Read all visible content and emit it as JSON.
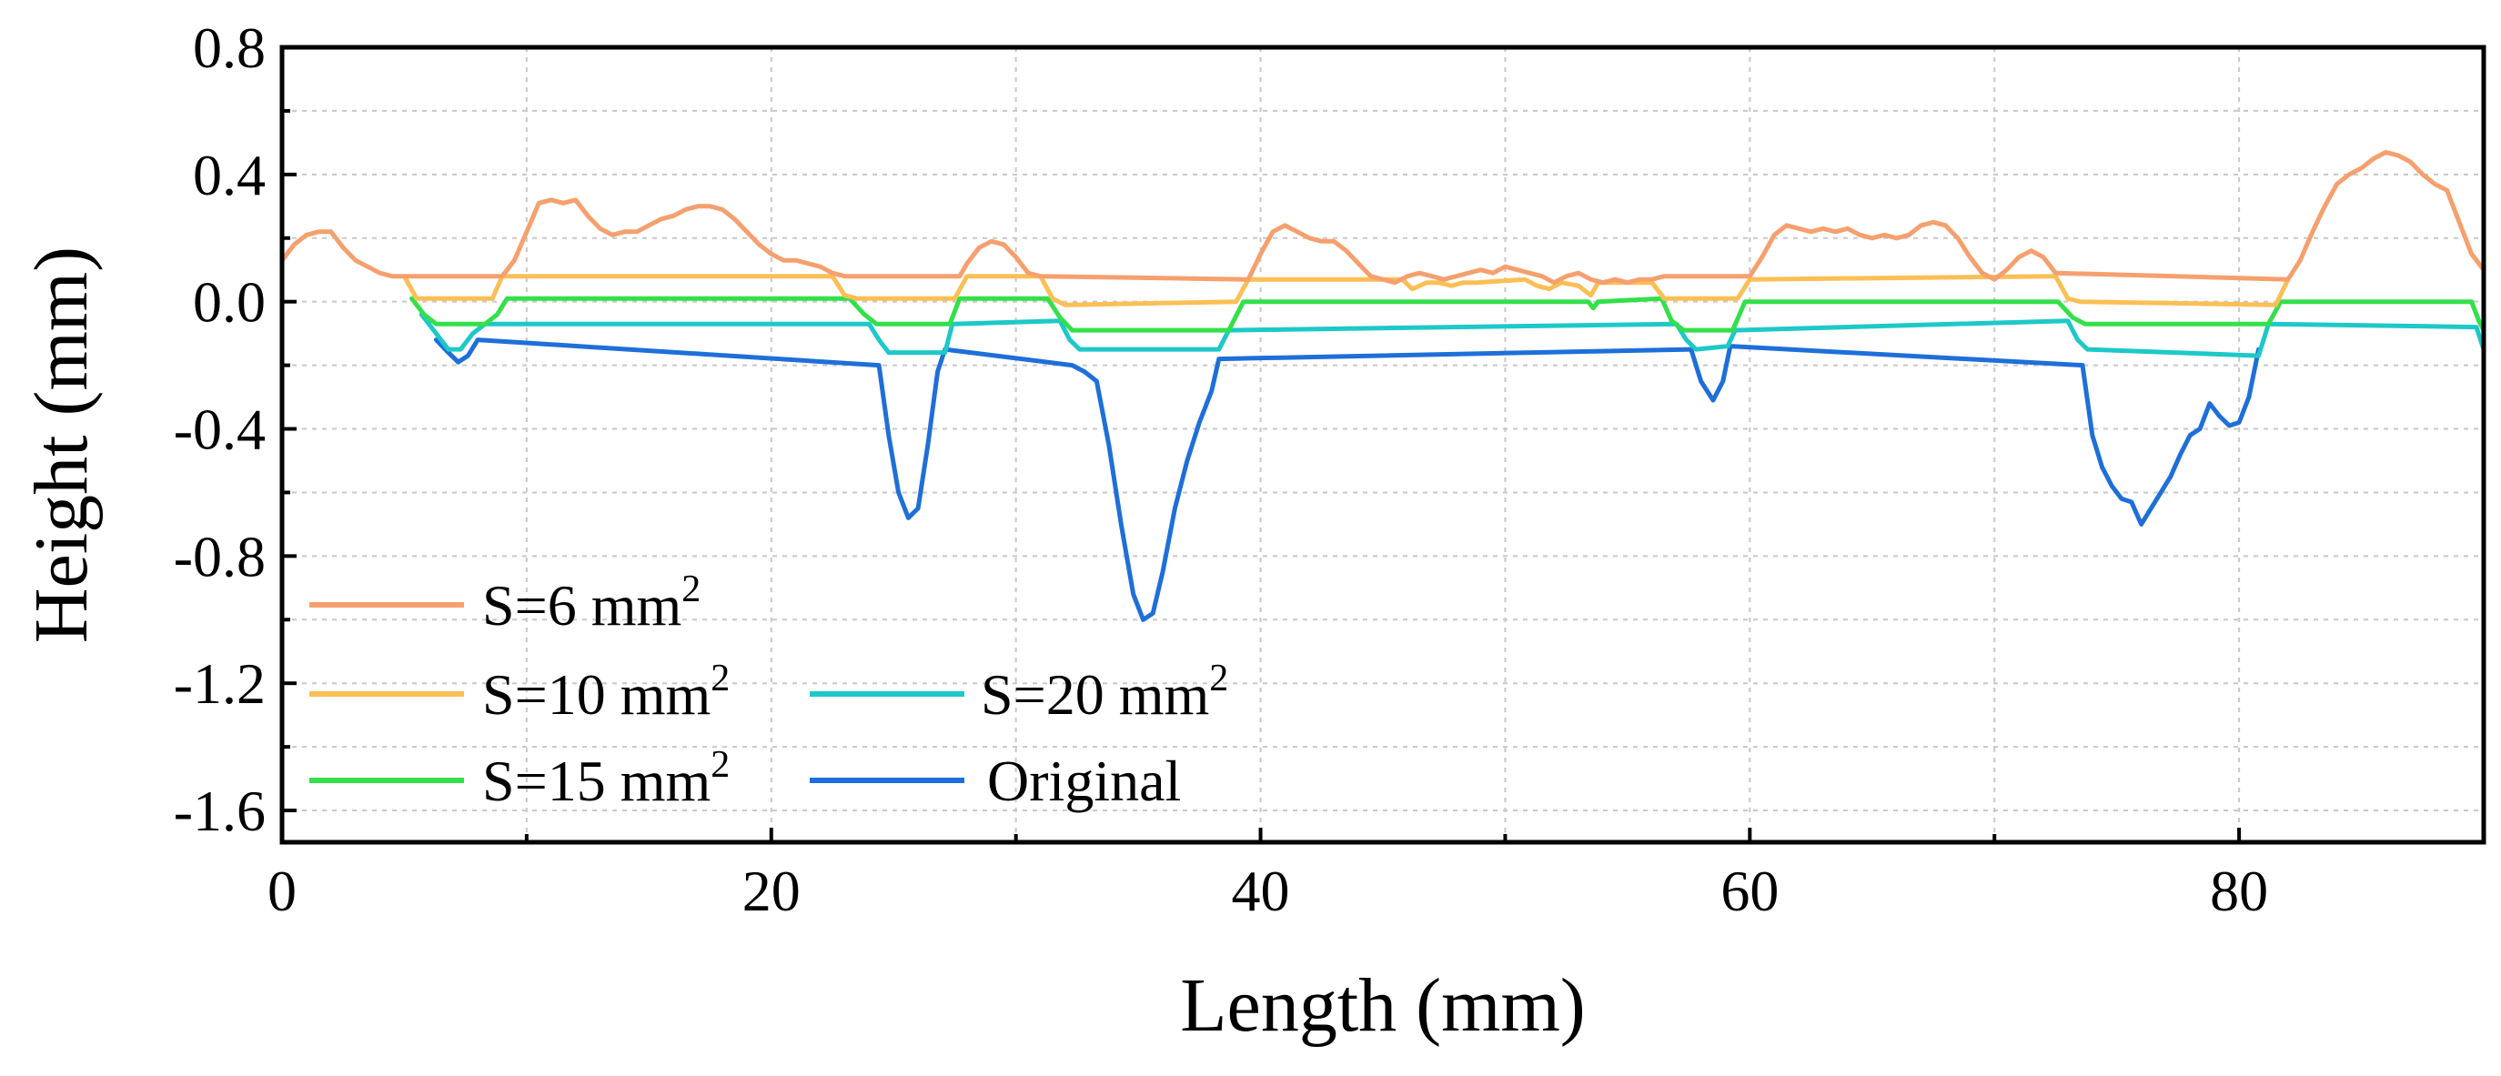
{
  "chart_data": {
    "type": "line",
    "title": "",
    "xlabel": "Length (mm)",
    "ylabel": "Height (mm)",
    "xlim": [
      0,
      90
    ],
    "ylim": [
      -1.7,
      0.8
    ],
    "xticks": [
      0,
      20,
      40,
      60,
      80
    ],
    "yticks": [
      -1.6,
      -1.2,
      -0.8,
      -0.4,
      0.0,
      0.4,
      0.8
    ],
    "ytick_labels": [
      "-1.6",
      "-1.2",
      "-0.8",
      "-0.4",
      "0.0",
      "0.4",
      "0.8"
    ],
    "grid": true,
    "legend_position": "bottom-left",
    "series": [
      {
        "name": "S=6 mm",
        "superscript": "2",
        "color": "#F5A06E",
        "x": [
          0,
          0.5,
          1,
          1.5,
          2,
          2.5,
          3,
          3.5,
          4,
          4.5,
          5,
          9,
          9.5,
          10,
          10.5,
          11,
          11.5,
          12,
          12.5,
          13,
          13.5,
          14,
          14.5,
          15,
          15.5,
          16,
          16.5,
          17,
          17.5,
          18,
          18.5,
          19,
          19.5,
          20,
          20.5,
          21,
          21.5,
          22,
          22.5,
          23,
          27.7,
          28,
          28.5,
          29,
          29.5,
          30,
          30.5,
          31,
          39.5,
          40,
          40.5,
          41,
          41.5,
          42,
          42.5,
          43,
          43.5,
          44,
          44.5,
          45,
          45.5,
          46,
          46.5,
          47,
          47.5,
          48,
          48.5,
          49,
          49.5,
          50,
          50.5,
          51,
          51.5,
          52,
          52.5,
          53,
          53.5,
          54,
          54.5,
          55,
          55.5,
          56,
          56.5,
          60,
          60.5,
          61,
          61.5,
          62,
          62.5,
          63,
          63.5,
          64,
          64.5,
          65,
          65.5,
          66,
          66.5,
          67,
          67.5,
          68,
          68.5,
          69,
          69.5,
          70,
          70.5,
          71,
          71.5,
          72,
          72.5,
          82,
          82.5,
          83,
          83.5,
          84,
          84.5,
          85,
          85.5,
          86,
          86.5,
          87,
          87.5,
          88,
          88.5,
          89,
          89.5,
          90
        ],
        "values": [
          0.13,
          0.18,
          0.21,
          0.22,
          0.22,
          0.17,
          0.13,
          0.11,
          0.09,
          0.08,
          0.08,
          0.08,
          0.13,
          0.22,
          0.31,
          0.32,
          0.31,
          0.32,
          0.27,
          0.23,
          0.21,
          0.22,
          0.22,
          0.24,
          0.26,
          0.27,
          0.29,
          0.3,
          0.3,
          0.29,
          0.26,
          0.22,
          0.18,
          0.15,
          0.13,
          0.13,
          0.12,
          0.11,
          0.09,
          0.08,
          0.08,
          0.12,
          0.17,
          0.19,
          0.18,
          0.14,
          0.09,
          0.08,
          0.07,
          0.15,
          0.22,
          0.24,
          0.22,
          0.2,
          0.19,
          0.19,
          0.16,
          0.12,
          0.08,
          0.07,
          0.06,
          0.08,
          0.09,
          0.08,
          0.07,
          0.08,
          0.09,
          0.1,
          0.09,
          0.11,
          0.1,
          0.09,
          0.08,
          0.06,
          0.08,
          0.09,
          0.07,
          0.06,
          0.07,
          0.06,
          0.07,
          0.07,
          0.08,
          0.08,
          0.14,
          0.21,
          0.24,
          0.23,
          0.22,
          0.23,
          0.22,
          0.23,
          0.21,
          0.2,
          0.21,
          0.2,
          0.21,
          0.24,
          0.25,
          0.24,
          0.2,
          0.14,
          0.09,
          0.07,
          0.1,
          0.14,
          0.16,
          0.14,
          0.09,
          0.07,
          0.13,
          0.22,
          0.3,
          0.37,
          0.4,
          0.42,
          0.45,
          0.47,
          0.46,
          0.44,
          0.4,
          0.37,
          0.35,
          0.25,
          0.15,
          0.1
        ]
      },
      {
        "name": "S=10 mm",
        "superscript": "2",
        "color": "#FBBF55",
        "x": [
          5,
          5.5,
          8.6,
          9,
          22.5,
          23,
          23.5,
          27.5,
          28,
          31,
          31.5,
          32,
          39,
          39.5,
          45.8,
          46.2,
          46.8,
          47.3,
          47.8,
          48.3,
          48.8,
          50.8,
          51.3,
          51.8,
          52.3,
          53,
          53.5,
          53.8,
          55.5,
          56,
          56.5,
          59.5,
          60,
          72.5,
          73,
          73.5,
          81.5,
          82
        ],
        "values": [
          0.08,
          0.01,
          0.01,
          0.08,
          0.08,
          0.02,
          0.01,
          0.01,
          0.08,
          0.08,
          0.01,
          -0.01,
          0.0,
          0.07,
          0.07,
          0.04,
          0.06,
          0.06,
          0.05,
          0.06,
          0.06,
          0.07,
          0.05,
          0.04,
          0.06,
          0.05,
          0.02,
          0.06,
          0.06,
          0.06,
          0.01,
          0.01,
          0.07,
          0.08,
          0.01,
          0.0,
          -0.01,
          0.07
        ]
      },
      {
        "name": "S=15 mm",
        "superscript": "2",
        "color": "#33E04A",
        "x": [
          5.3,
          5.8,
          6.3,
          8.3,
          8.8,
          9.2,
          23.2,
          23.8,
          24.3,
          27.3,
          27.7,
          31.3,
          31.8,
          32.3,
          38.7,
          39.3,
          53.4,
          53.6,
          53.8,
          56.4,
          56.8,
          57.3,
          59.3,
          59.8,
          72.6,
          73.2,
          73.7,
          81.2,
          81.7,
          89.5,
          89.8,
          90
        ],
        "values": [
          0.01,
          -0.04,
          -0.07,
          -0.07,
          -0.04,
          0.01,
          0.01,
          -0.04,
          -0.07,
          -0.07,
          0.01,
          0.01,
          -0.05,
          -0.09,
          -0.09,
          0.0,
          0.0,
          -0.02,
          0.0,
          0.01,
          -0.06,
          -0.09,
          -0.09,
          0.0,
          0.0,
          -0.05,
          -0.07,
          -0.07,
          0.0,
          0.0,
          -0.06,
          -0.09
        ]
      },
      {
        "name": "S=20 mm",
        "superscript": "2",
        "color": "#1EC8C8",
        "x": [
          5.7,
          6.3,
          6.8,
          7.3,
          7.8,
          8.3,
          24.0,
          24.4,
          24.8,
          27.1,
          27.4,
          31.8,
          32.2,
          32.6,
          38.3,
          38.7,
          57.0,
          57.4,
          57.8,
          59.1,
          59.4,
          73.0,
          73.4,
          73.8,
          80.8,
          81.2,
          89.7,
          90
        ],
        "values": [
          -0.04,
          -0.1,
          -0.15,
          -0.15,
          -0.1,
          -0.07,
          -0.07,
          -0.12,
          -0.16,
          -0.16,
          -0.07,
          -0.06,
          -0.12,
          -0.15,
          -0.15,
          -0.09,
          -0.07,
          -0.12,
          -0.15,
          -0.14,
          -0.09,
          -0.06,
          -0.12,
          -0.15,
          -0.17,
          -0.07,
          -0.08,
          -0.15
        ]
      },
      {
        "name": "Original",
        "superscript": "",
        "color": "#1E6FD9",
        "x": [
          6.3,
          6.8,
          7.2,
          7.6,
          8.0,
          24.4,
          24.8,
          25.2,
          25.6,
          26.0,
          26.4,
          26.8,
          27.1,
          32.3,
          32.8,
          33.3,
          33.8,
          34.3,
          34.8,
          35.2,
          35.6,
          36.0,
          36.5,
          37.0,
          37.5,
          38.0,
          38.3,
          57.6,
          58.0,
          58.5,
          58.9,
          59.2,
          73.6,
          74.0,
          74.4,
          74.8,
          75.2,
          75.6,
          76.0,
          76.4,
          76.8,
          77.2,
          77.6,
          78.0,
          78.4,
          78.8,
          79.2,
          79.6,
          80.0,
          80.4,
          80.8
        ],
        "values": [
          -0.12,
          -0.16,
          -0.19,
          -0.17,
          -0.12,
          -0.2,
          -0.42,
          -0.6,
          -0.68,
          -0.65,
          -0.45,
          -0.22,
          -0.15,
          -0.2,
          -0.22,
          -0.25,
          -0.45,
          -0.7,
          -0.92,
          -1.0,
          -0.98,
          -0.85,
          -0.65,
          -0.5,
          -0.38,
          -0.28,
          -0.18,
          -0.15,
          -0.25,
          -0.31,
          -0.25,
          -0.14,
          -0.2,
          -0.42,
          -0.52,
          -0.58,
          -0.62,
          -0.63,
          -0.7,
          -0.65,
          -0.6,
          -0.55,
          -0.48,
          -0.42,
          -0.4,
          -0.32,
          -0.36,
          -0.39,
          -0.38,
          -0.3,
          -0.15
        ]
      }
    ]
  }
}
